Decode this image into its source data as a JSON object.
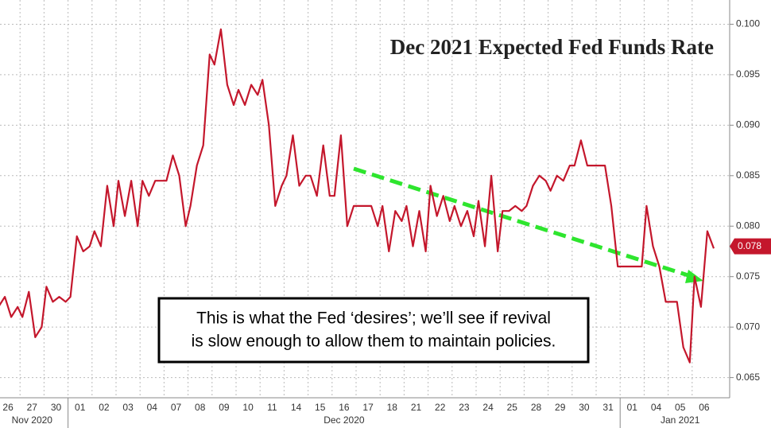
{
  "chart_data": {
    "type": "line",
    "title": "Dec 2021 Expected Fed Funds Rate",
    "annotation": [
      "This is what the Fed ‘desires’; we’ll see if revival",
      "is slow enough to allow them to maintain policies."
    ],
    "categories": [
      "26",
      "27",
      "30",
      "01",
      "02",
      "03",
      "04",
      "07",
      "08",
      "09",
      "10",
      "11",
      "14",
      "15",
      "16",
      "17",
      "18",
      "21",
      "22",
      "23",
      "24",
      "25",
      "28",
      "29",
      "30",
      "31",
      "01",
      "04",
      "05",
      "06"
    ],
    "months": [
      null,
      "Nov 2020",
      null,
      null,
      null,
      null,
      null,
      null,
      null,
      null,
      null,
      null,
      null,
      null,
      "Dec 2020",
      null,
      null,
      null,
      null,
      null,
      null,
      null,
      null,
      null,
      null,
      null,
      null,
      null,
      "Jan 2021",
      null
    ],
    "series": [
      {
        "color": "#c4172c",
        "values": [
          [
            0.072,
            0.073,
            0.071,
            0.072
          ],
          [
            0.071,
            0.0735,
            0.069,
            0.07
          ],
          [
            0.074,
            0.0725,
            0.073,
            0.0725
          ],
          [
            0.073,
            0.079,
            0.0775,
            0.078
          ],
          [
            0.0795,
            0.078,
            0.084,
            0.08
          ],
          [
            0.0845,
            0.081,
            0.0845,
            0.08
          ],
          [
            0.0845,
            0.083,
            0.0845,
            0.0845
          ],
          [
            0.0845,
            0.087,
            0.085,
            0.08
          ],
          [
            0.082,
            0.086,
            0.088,
            0.097
          ],
          [
            0.096,
            0.0995,
            0.094,
            0.092
          ],
          [
            0.0935,
            0.092,
            0.094,
            0.093
          ],
          [
            0.0945,
            0.09,
            0.082,
            0.084
          ],
          [
            0.085,
            0.089,
            0.084,
            0.085
          ],
          [
            0.085,
            0.083,
            0.088,
            0.083
          ],
          [
            0.083,
            0.089,
            0.08,
            0.082
          ],
          [
            0.082,
            0.082,
            0.082,
            0.08
          ],
          [
            0.082,
            0.0775,
            0.0815,
            0.0805
          ],
          [
            0.082,
            0.078,
            0.0815,
            0.0775
          ],
          [
            0.084,
            0.081,
            0.083,
            0.0805
          ],
          [
            0.082,
            0.08,
            0.0815,
            0.079
          ],
          [
            0.0825,
            0.078,
            0.085,
            0.0775
          ],
          [
            0.0815,
            0.0815,
            0.082,
            0.0815
          ],
          [
            0.082,
            0.084,
            0.085,
            0.0845
          ],
          [
            0.0835,
            0.085,
            0.0845,
            0.086
          ],
          [
            0.086,
            0.0885,
            0.086,
            0.086
          ],
          [
            0.086,
            0.086,
            0.082,
            0.076
          ],
          [
            0.076,
            0.076,
            0.076,
            0.076
          ],
          [
            0.082,
            0.078,
            0.076,
            0.0725
          ],
          [
            0.0725,
            0.0725,
            0.068,
            0.0665
          ],
          [
            0.075,
            0.072,
            0.0795,
            0.0778
          ]
        ]
      }
    ],
    "last_value": 0.078,
    "ylim": [
      0.063,
      0.1024
    ],
    "yticks": [
      0.065,
      {
        "value": 0.07,
        "label": "0.070"
      },
      0.075,
      {
        "value": 0.08,
        "label": "0.080"
      },
      0.085,
      {
        "value": 0.09,
        "label": "0.090"
      },
      0.095,
      {
        "value": 0.1,
        "label": "0.100"
      }
    ],
    "grid": true
  }
}
